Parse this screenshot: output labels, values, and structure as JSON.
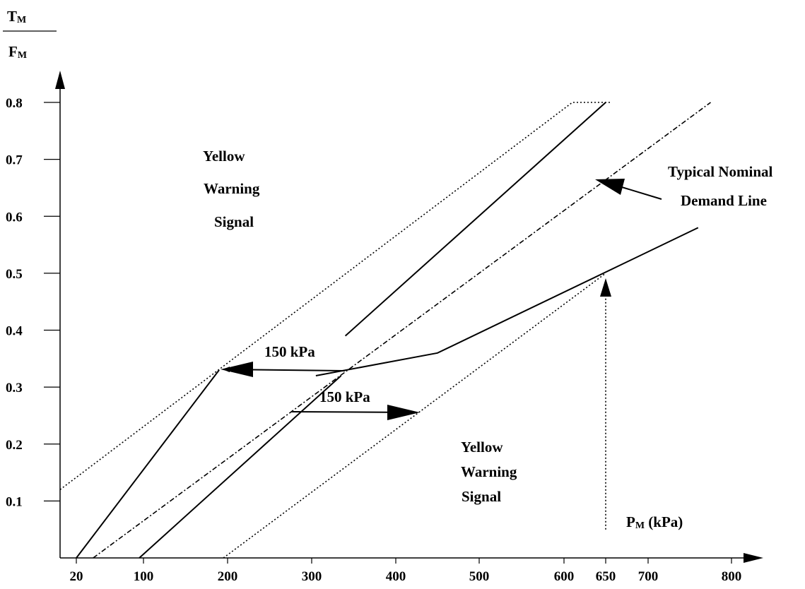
{
  "chart_data": {
    "type": "line",
    "y_axis_label": {
      "main": "T",
      "sub": "M",
      "denominator_main": "F",
      "denominator_sub": "M"
    },
    "x_axis_label": {
      "main": "P",
      "sub": "M",
      "unit": " (kPa)"
    },
    "y_ticks": [
      "0.1",
      "0.2",
      "0.3",
      "0.4",
      "0.5",
      "0.6",
      "0.7",
      "0.8"
    ],
    "y_tick_values": [
      0.1,
      0.2,
      0.3,
      0.4,
      0.5,
      0.6,
      0.7,
      0.8
    ],
    "x_ticks": [
      "20",
      "100",
      "200",
      "300",
      "400",
      "500",
      "600",
      "650",
      "700",
      "800"
    ],
    "x_tick_values": [
      20,
      100,
      200,
      300,
      400,
      500,
      600,
      650,
      700,
      800
    ],
    "xlim": [
      0,
      830
    ],
    "ylim": [
      0,
      0.8
    ],
    "series": [
      {
        "style": "dotted",
        "points": [
          [
            0,
            0.12
          ],
          [
            610,
            0.8
          ],
          [
            655,
            0.8
          ]
        ]
      },
      {
        "style": "solid",
        "points": [
          [
            20,
            0.0
          ],
          [
            190,
            0.33
          ]
        ]
      },
      {
        "style": "solid",
        "points": [
          [
            340,
            0.39
          ],
          [
            650,
            0.8
          ]
        ]
      },
      {
        "style": "dashdot",
        "points": [
          [
            40,
            0.0
          ],
          [
            775,
            0.8
          ]
        ]
      },
      {
        "style": "solid",
        "points": [
          [
            95,
            0.0
          ],
          [
            335,
            0.32
          ]
        ]
      },
      {
        "style": "solid",
        "points": [
          [
            305,
            0.32
          ],
          [
            450,
            0.36
          ],
          [
            760,
            0.58
          ]
        ]
      },
      {
        "style": "dotted",
        "points": [
          [
            195,
            0.0
          ],
          [
            650,
            0.5
          ]
        ]
      },
      {
        "style": "dotted",
        "points": [
          [
            650,
            0.05
          ],
          [
            650,
            0.48
          ]
        ]
      }
    ],
    "annotations": [
      {
        "id": "yellow-warning-upper",
        "lines": [
          "Yellow",
          "Warning",
          "Signal"
        ]
      },
      {
        "id": "yellow-warning-lower",
        "lines": [
          "Yellow",
          "Warning",
          "Signal"
        ]
      },
      {
        "id": "typical-nominal",
        "lines": [
          "Typical Nominal",
          "Demand Line"
        ]
      },
      {
        "id": "pressure-upper",
        "lines": [
          "150 kPa"
        ]
      },
      {
        "id": "pressure-lower",
        "lines": [
          "150 kPa"
        ]
      }
    ]
  }
}
